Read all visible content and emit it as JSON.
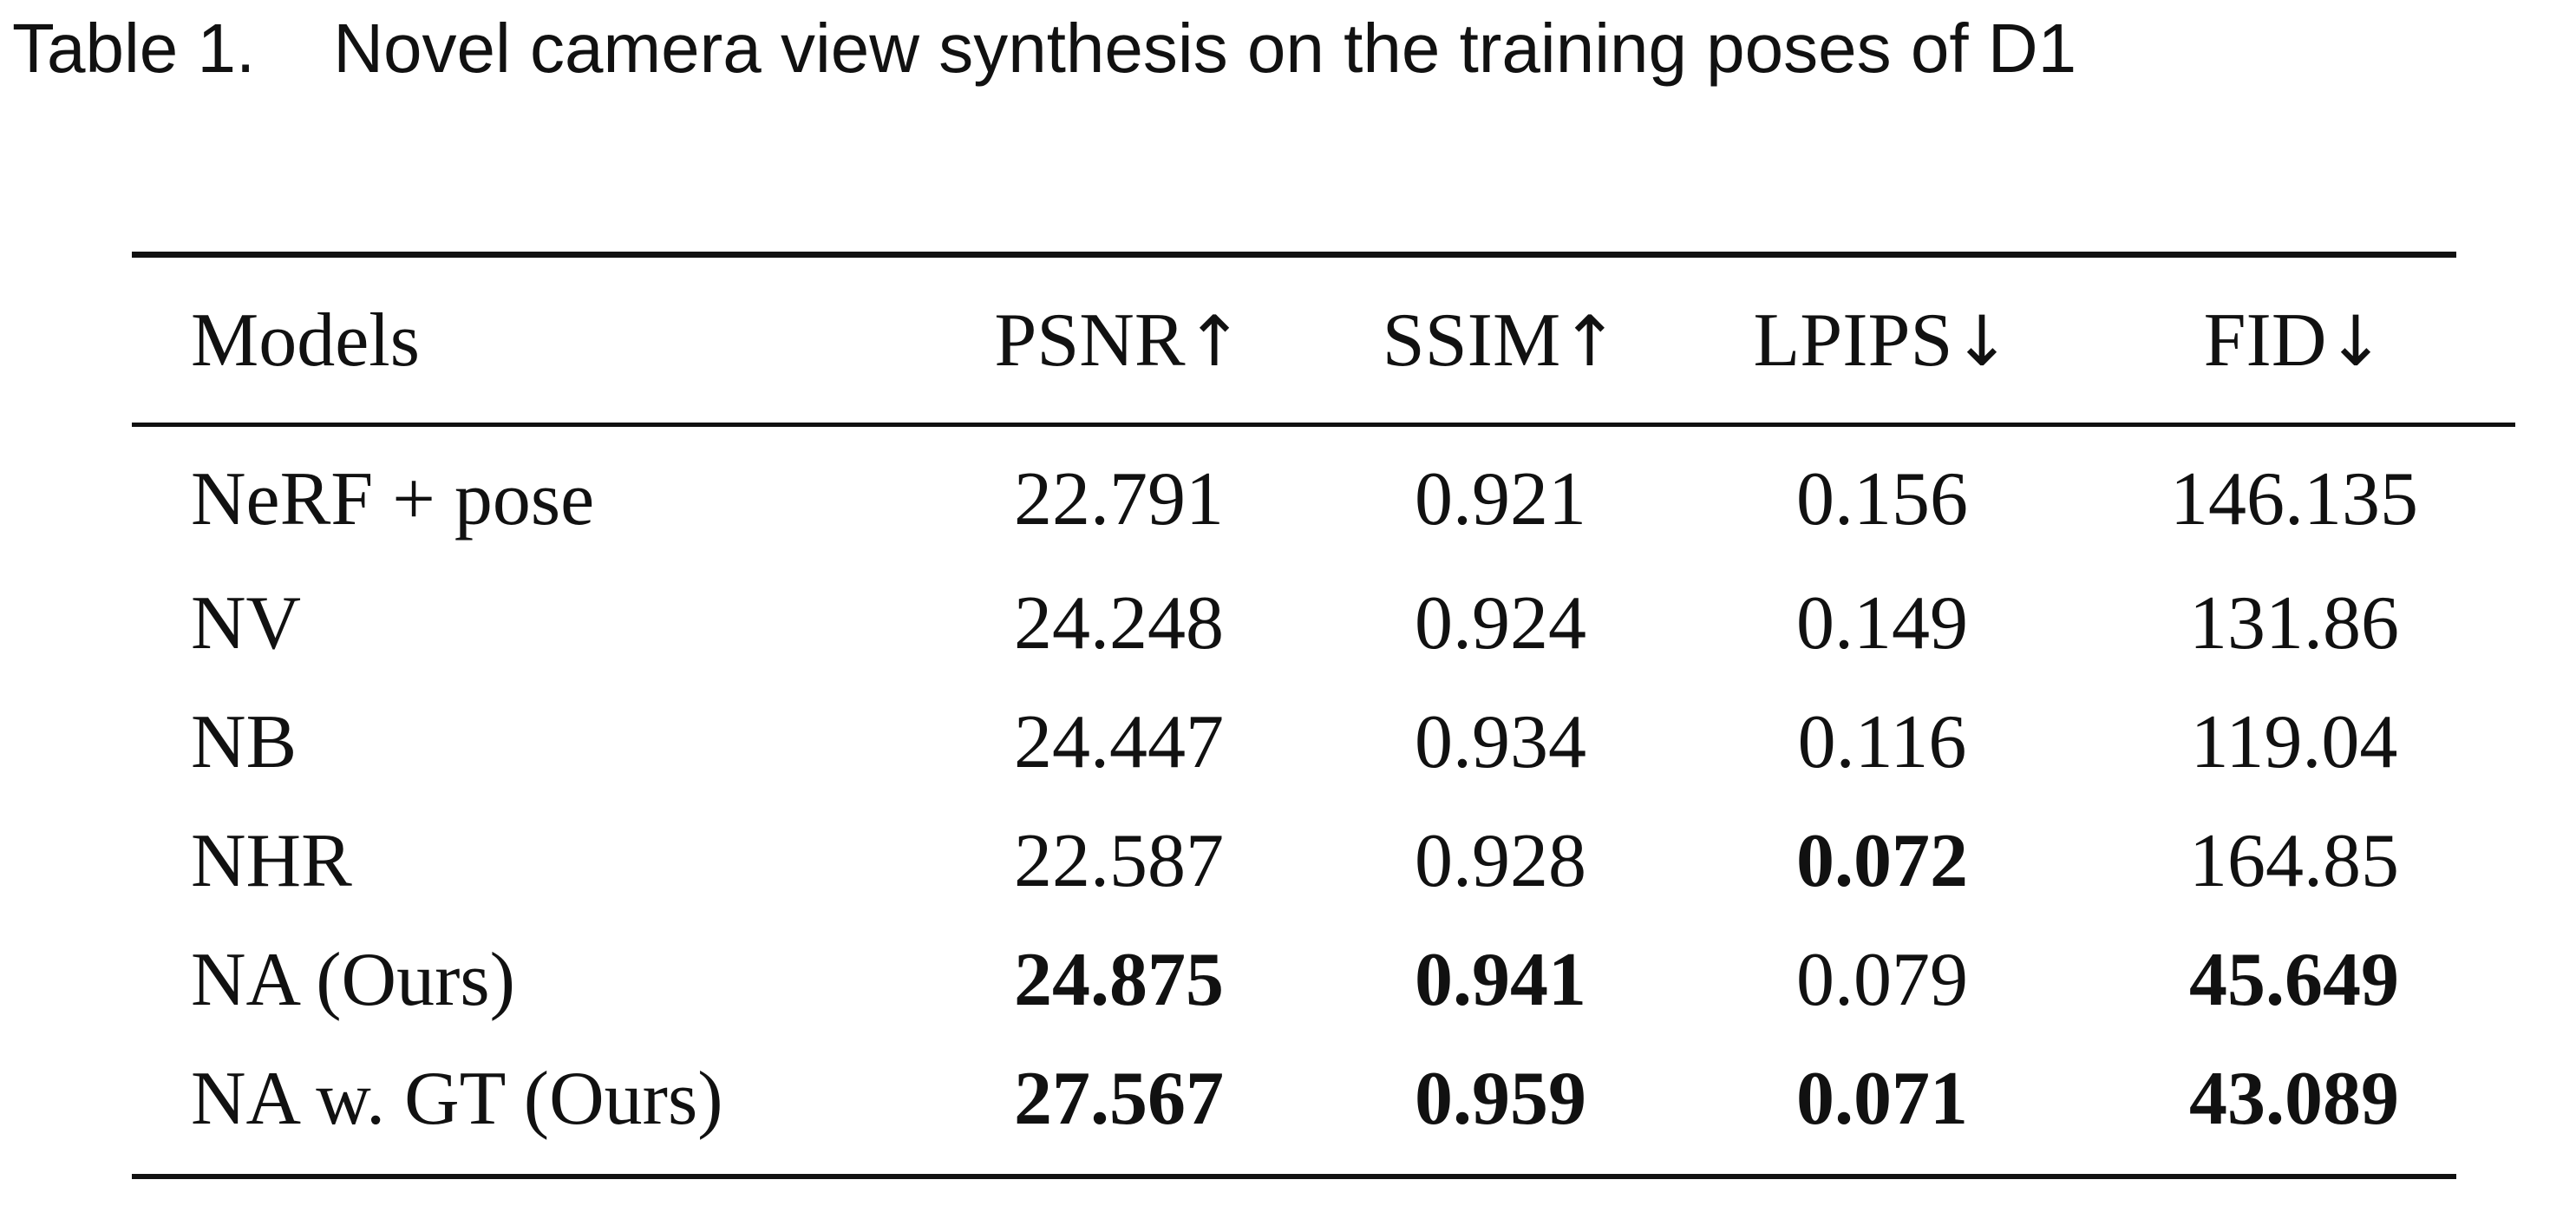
{
  "caption": {
    "label": "Table 1.",
    "text": "Novel camera view synthesis on the training poses of D1"
  },
  "table": {
    "headers": [
      {
        "label": "Models",
        "arrow": ""
      },
      {
        "label": "PSNR",
        "arrow": "↑"
      },
      {
        "label": "SSIM",
        "arrow": "↑"
      },
      {
        "label": "LPIPS",
        "arrow": "↓"
      },
      {
        "label": "FID",
        "arrow": "↓"
      }
    ],
    "rows": [
      {
        "model": "NeRF + pose",
        "psnr": "22.791",
        "ssim": "0.921",
        "lpips": "0.156",
        "fid": "146.135",
        "bold": {
          "psnr": false,
          "ssim": false,
          "lpips": false,
          "fid": false
        }
      },
      {
        "model": "NV",
        "psnr": "24.248",
        "ssim": "0.924",
        "lpips": "0.149",
        "fid": "131.86",
        "bold": {
          "psnr": false,
          "ssim": false,
          "lpips": false,
          "fid": false
        }
      },
      {
        "model": "NB",
        "psnr": "24.447",
        "ssim": "0.934",
        "lpips": "0.116",
        "fid": "119.04",
        "bold": {
          "psnr": false,
          "ssim": false,
          "lpips": false,
          "fid": false
        }
      },
      {
        "model": "NHR",
        "psnr": "22.587",
        "ssim": "0.928",
        "lpips": "0.072",
        "fid": "164.85",
        "bold": {
          "psnr": false,
          "ssim": false,
          "lpips": true,
          "fid": false
        }
      },
      {
        "model": "NA (Ours)",
        "psnr": "24.875",
        "ssim": "0.941",
        "lpips": "0.079",
        "fid": "45.649",
        "bold": {
          "psnr": true,
          "ssim": true,
          "lpips": false,
          "fid": true
        }
      },
      {
        "model": "NA w. GT (Ours)",
        "psnr": "27.567",
        "ssim": "0.959",
        "lpips": "0.071",
        "fid": "43.089",
        "bold": {
          "psnr": true,
          "ssim": true,
          "lpips": true,
          "fid": true
        }
      }
    ]
  }
}
